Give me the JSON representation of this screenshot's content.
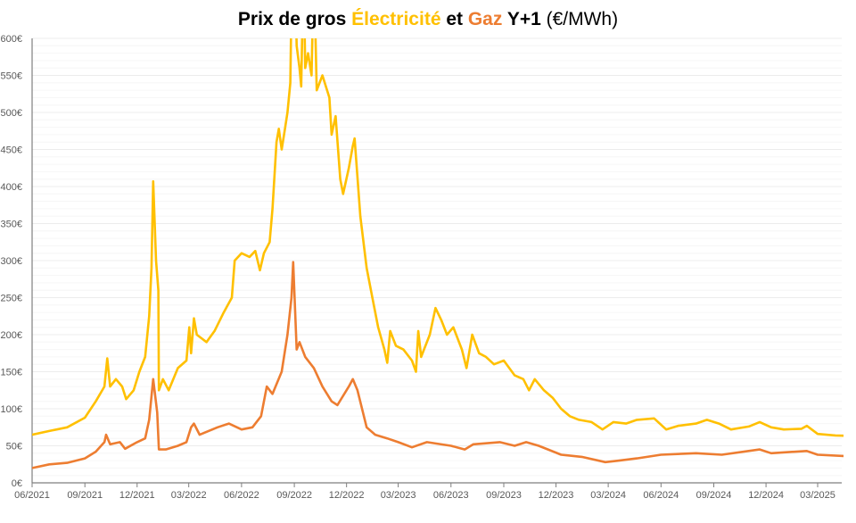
{
  "chart_data": {
    "type": "line",
    "title": {
      "prefix": "Prix de gros ",
      "elec": "Électricité",
      "mid": " et ",
      "gaz": "Gaz",
      "suffix": " Y+1 ",
      "unit": "(€/MWh)"
    },
    "xlabel": "",
    "ylabel": "",
    "ylim": [
      0,
      600
    ],
    "xlim": [
      "2021-06-01",
      "2025-05-15"
    ],
    "yticks": [
      "0€",
      "50€",
      "100€",
      "150€",
      "200€",
      "250€",
      "300€",
      "350€",
      "400€",
      "450€",
      "500€",
      "550€",
      "600€"
    ],
    "xticks": [
      "06/2021",
      "09/2021",
      "12/2021",
      "03/2022",
      "06/2022",
      "09/2022",
      "12/2022",
      "03/2023",
      "06/2023",
      "09/2023",
      "12/2023",
      "03/2024",
      "06/2024",
      "09/2024",
      "12/2024",
      "03/2025"
    ],
    "grid": true,
    "legend": "none (colored words in title)",
    "series": [
      {
        "name": "Électricité",
        "color": "#FFC000",
        "points": [
          [
            "2021-06-01",
            65
          ],
          [
            "2021-07-01",
            70
          ],
          [
            "2021-08-01",
            75
          ],
          [
            "2021-09-01",
            88
          ],
          [
            "2021-09-20",
            110
          ],
          [
            "2021-10-05",
            130
          ],
          [
            "2021-10-10",
            168
          ],
          [
            "2021-10-15",
            130
          ],
          [
            "2021-10-25",
            140
          ],
          [
            "2021-11-05",
            130
          ],
          [
            "2021-11-12",
            113
          ],
          [
            "2021-11-25",
            125
          ],
          [
            "2021-12-05",
            150
          ],
          [
            "2021-12-15",
            170
          ],
          [
            "2021-12-22",
            225
          ],
          [
            "2021-12-26",
            290
          ],
          [
            "2021-12-29",
            407
          ],
          [
            "2022-01-03",
            300
          ],
          [
            "2022-01-07",
            260
          ],
          [
            "2022-01-08",
            125
          ],
          [
            "2022-01-15",
            140
          ],
          [
            "2022-01-25",
            125
          ],
          [
            "2022-02-10",
            155
          ],
          [
            "2022-02-25",
            165
          ],
          [
            "2022-03-02",
            210
          ],
          [
            "2022-03-05",
            175
          ],
          [
            "2022-03-10",
            222
          ],
          [
            "2022-03-15",
            200
          ],
          [
            "2022-04-01",
            190
          ],
          [
            "2022-04-15",
            205
          ],
          [
            "2022-05-01",
            230
          ],
          [
            "2022-05-15",
            250
          ],
          [
            "2022-05-20",
            300
          ],
          [
            "2022-06-01",
            310
          ],
          [
            "2022-06-15",
            305
          ],
          [
            "2022-06-25",
            313
          ],
          [
            "2022-07-03",
            287
          ],
          [
            "2022-07-10",
            310
          ],
          [
            "2022-07-20",
            325
          ],
          [
            "2022-07-25",
            370
          ],
          [
            "2022-08-01",
            460
          ],
          [
            "2022-08-05",
            478
          ],
          [
            "2022-08-10",
            450
          ],
          [
            "2022-08-15",
            475
          ],
          [
            "2022-08-20",
            500
          ],
          [
            "2022-08-25",
            540
          ],
          [
            "2022-08-28",
            700
          ],
          [
            "2022-09-02",
            700
          ],
          [
            "2022-09-05",
            590
          ],
          [
            "2022-09-10",
            560
          ],
          [
            "2022-09-13",
            535
          ],
          [
            "2022-09-17",
            700
          ],
          [
            "2022-09-20",
            560
          ],
          [
            "2022-09-25",
            580
          ],
          [
            "2022-10-01",
            550
          ],
          [
            "2022-10-05",
            700
          ],
          [
            "2022-10-10",
            530
          ],
          [
            "2022-10-20",
            550
          ],
          [
            "2022-11-01",
            520
          ],
          [
            "2022-11-05",
            470
          ],
          [
            "2022-11-12",
            495
          ],
          [
            "2022-11-20",
            410
          ],
          [
            "2022-11-25",
            390
          ],
          [
            "2022-12-05",
            425
          ],
          [
            "2022-12-12",
            455
          ],
          [
            "2022-12-15",
            465
          ],
          [
            "2022-12-25",
            360
          ],
          [
            "2023-01-05",
            290
          ],
          [
            "2023-01-15",
            250
          ],
          [
            "2023-01-25",
            210
          ],
          [
            "2023-02-05",
            180
          ],
          [
            "2023-02-10",
            162
          ],
          [
            "2023-02-15",
            205
          ],
          [
            "2023-02-25",
            185
          ],
          [
            "2023-03-10",
            180
          ],
          [
            "2023-03-25",
            165
          ],
          [
            "2023-04-01",
            150
          ],
          [
            "2023-04-05",
            205
          ],
          [
            "2023-04-10",
            170
          ],
          [
            "2023-04-25",
            200
          ],
          [
            "2023-05-05",
            236
          ],
          [
            "2023-05-15",
            220
          ],
          [
            "2023-05-25",
            200
          ],
          [
            "2023-06-05",
            210
          ],
          [
            "2023-06-20",
            180
          ],
          [
            "2023-06-28",
            155
          ],
          [
            "2023-07-08",
            200
          ],
          [
            "2023-07-20",
            175
          ],
          [
            "2023-08-01",
            170
          ],
          [
            "2023-08-15",
            160
          ],
          [
            "2023-09-01",
            165
          ],
          [
            "2023-09-20",
            145
          ],
          [
            "2023-10-05",
            140
          ],
          [
            "2023-10-15",
            125
          ],
          [
            "2023-10-25",
            140
          ],
          [
            "2023-11-10",
            125
          ],
          [
            "2023-11-25",
            115
          ],
          [
            "2023-12-10",
            100
          ],
          [
            "2023-12-25",
            90
          ],
          [
            "2024-01-10",
            85
          ],
          [
            "2024-02-01",
            82
          ],
          [
            "2024-02-20",
            72
          ],
          [
            "2024-03-10",
            82
          ],
          [
            "2024-04-01",
            80
          ],
          [
            "2024-04-20",
            85
          ],
          [
            "2024-05-20",
            87
          ],
          [
            "2024-06-10",
            72
          ],
          [
            "2024-07-01",
            77
          ],
          [
            "2024-08-01",
            80
          ],
          [
            "2024-08-20",
            85
          ],
          [
            "2024-09-10",
            80
          ],
          [
            "2024-10-01",
            72
          ],
          [
            "2024-11-01",
            76
          ],
          [
            "2024-11-20",
            82
          ],
          [
            "2024-12-10",
            75
          ],
          [
            "2025-01-01",
            72
          ],
          [
            "2025-02-01",
            73
          ],
          [
            "2025-02-10",
            77
          ],
          [
            "2025-03-01",
            66
          ],
          [
            "2025-04-01",
            64
          ],
          [
            "2025-05-15",
            63
          ]
        ]
      },
      {
        "name": "Gaz",
        "color": "#ED7D31",
        "points": [
          [
            "2021-06-01",
            20
          ],
          [
            "2021-07-01",
            25
          ],
          [
            "2021-08-01",
            27
          ],
          [
            "2021-09-01",
            33
          ],
          [
            "2021-09-20",
            42
          ],
          [
            "2021-10-05",
            55
          ],
          [
            "2021-10-08",
            65
          ],
          [
            "2021-10-15",
            52
          ],
          [
            "2021-11-01",
            55
          ],
          [
            "2021-11-10",
            46
          ],
          [
            "2021-12-01",
            55
          ],
          [
            "2021-12-15",
            60
          ],
          [
            "2021-12-22",
            85
          ],
          [
            "2021-12-29",
            140
          ],
          [
            "2022-01-05",
            95
          ],
          [
            "2022-01-08",
            45
          ],
          [
            "2022-01-20",
            45
          ],
          [
            "2022-02-10",
            50
          ],
          [
            "2022-02-25",
            55
          ],
          [
            "2022-03-05",
            75
          ],
          [
            "2022-03-10",
            80
          ],
          [
            "2022-03-20",
            65
          ],
          [
            "2022-04-20",
            75
          ],
          [
            "2022-05-10",
            80
          ],
          [
            "2022-06-01",
            72
          ],
          [
            "2022-06-20",
            75
          ],
          [
            "2022-07-05",
            90
          ],
          [
            "2022-07-15",
            130
          ],
          [
            "2022-07-25",
            120
          ],
          [
            "2022-08-10",
            150
          ],
          [
            "2022-08-20",
            200
          ],
          [
            "2022-08-27",
            250
          ],
          [
            "2022-08-30",
            298
          ],
          [
            "2022-09-05",
            180
          ],
          [
            "2022-09-10",
            190
          ],
          [
            "2022-09-20",
            170
          ],
          [
            "2022-10-05",
            155
          ],
          [
            "2022-10-20",
            130
          ],
          [
            "2022-11-05",
            110
          ],
          [
            "2022-11-15",
            105
          ],
          [
            "2022-12-05",
            130
          ],
          [
            "2022-12-12",
            140
          ],
          [
            "2022-12-20",
            125
          ],
          [
            "2023-01-05",
            75
          ],
          [
            "2023-01-20",
            65
          ],
          [
            "2023-02-10",
            60
          ],
          [
            "2023-03-01",
            55
          ],
          [
            "2023-03-25",
            48
          ],
          [
            "2023-04-20",
            55
          ],
          [
            "2023-06-01",
            50
          ],
          [
            "2023-06-25",
            45
          ],
          [
            "2023-07-10",
            52
          ],
          [
            "2023-08-25",
            55
          ],
          [
            "2023-09-20",
            50
          ],
          [
            "2023-10-10",
            55
          ],
          [
            "2023-11-01",
            50
          ],
          [
            "2023-12-10",
            38
          ],
          [
            "2024-01-15",
            35
          ],
          [
            "2024-02-25",
            28
          ],
          [
            "2024-03-20",
            30
          ],
          [
            "2024-04-20",
            33
          ],
          [
            "2024-06-01",
            38
          ],
          [
            "2024-08-01",
            40
          ],
          [
            "2024-09-15",
            38
          ],
          [
            "2024-11-20",
            45
          ],
          [
            "2024-12-10",
            40
          ],
          [
            "2025-02-10",
            43
          ],
          [
            "2025-03-01",
            38
          ],
          [
            "2025-05-15",
            35
          ]
        ]
      }
    ]
  }
}
